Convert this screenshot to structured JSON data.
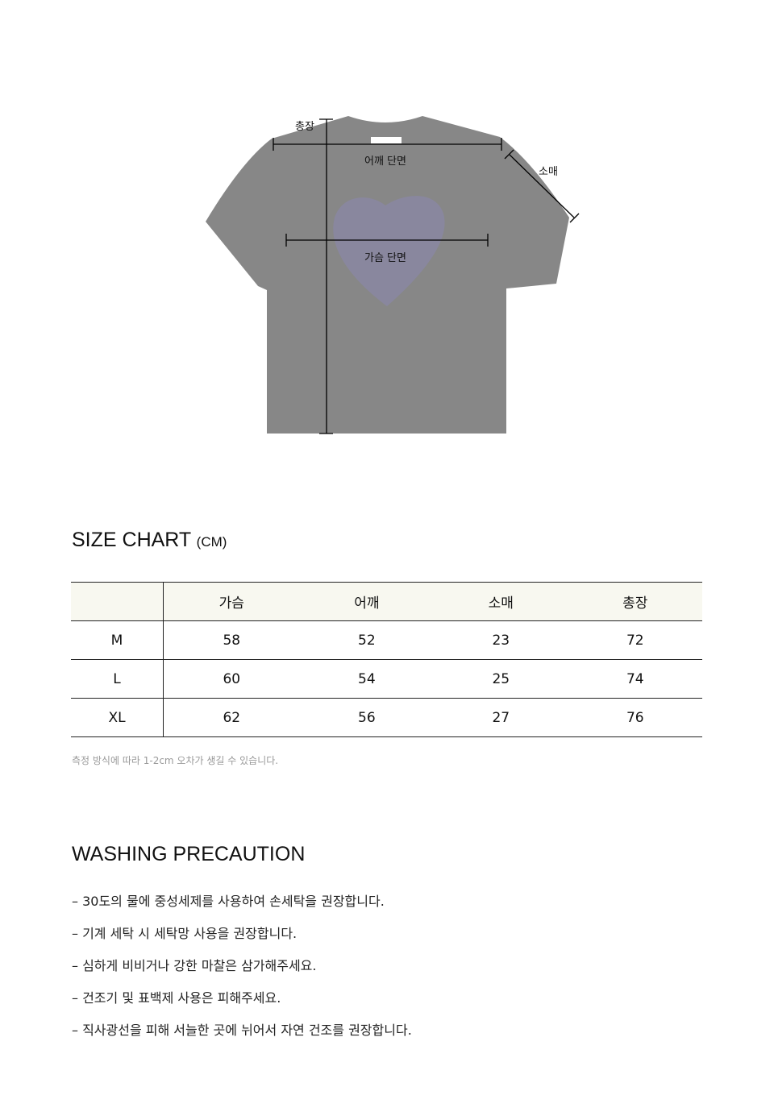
{
  "diagram": {
    "labels": {
      "length": "총장",
      "shoulder": "어깨 단면",
      "sleeve": "소매",
      "chest": "가슴 단면"
    },
    "shirt_color": "#878787"
  },
  "size_chart": {
    "title": "SIZE CHART",
    "unit": "(CM)",
    "columns": [
      "",
      "가슴",
      "어깨",
      "소매",
      "총장"
    ],
    "rows": [
      [
        "M",
        "58",
        "52",
        "23",
        "72"
      ],
      [
        "L",
        "60",
        "54",
        "25",
        "74"
      ],
      [
        "XL",
        "62",
        "56",
        "27",
        "76"
      ]
    ],
    "header_bg": "#f8f8f0",
    "note": "측정 방식에 따라 1-2cm 오차가 생길 수 있습니다."
  },
  "washing": {
    "title": "WASHING PRECAUTION",
    "items": [
      "–  30도의 물에 중성세제를 사용하여 손세탁을 권장합니다.",
      "–  기계 세탁 시 세탁망 사용을 권장합니다.",
      "–  심하게 비비거나 강한 마찰은 삼가해주세요.",
      "–  건조기 및 표백제 사용은 피해주세요.",
      "–  직사광선을 피해 서늘한 곳에 뉘어서 자연 건조를 권장합니다."
    ]
  }
}
